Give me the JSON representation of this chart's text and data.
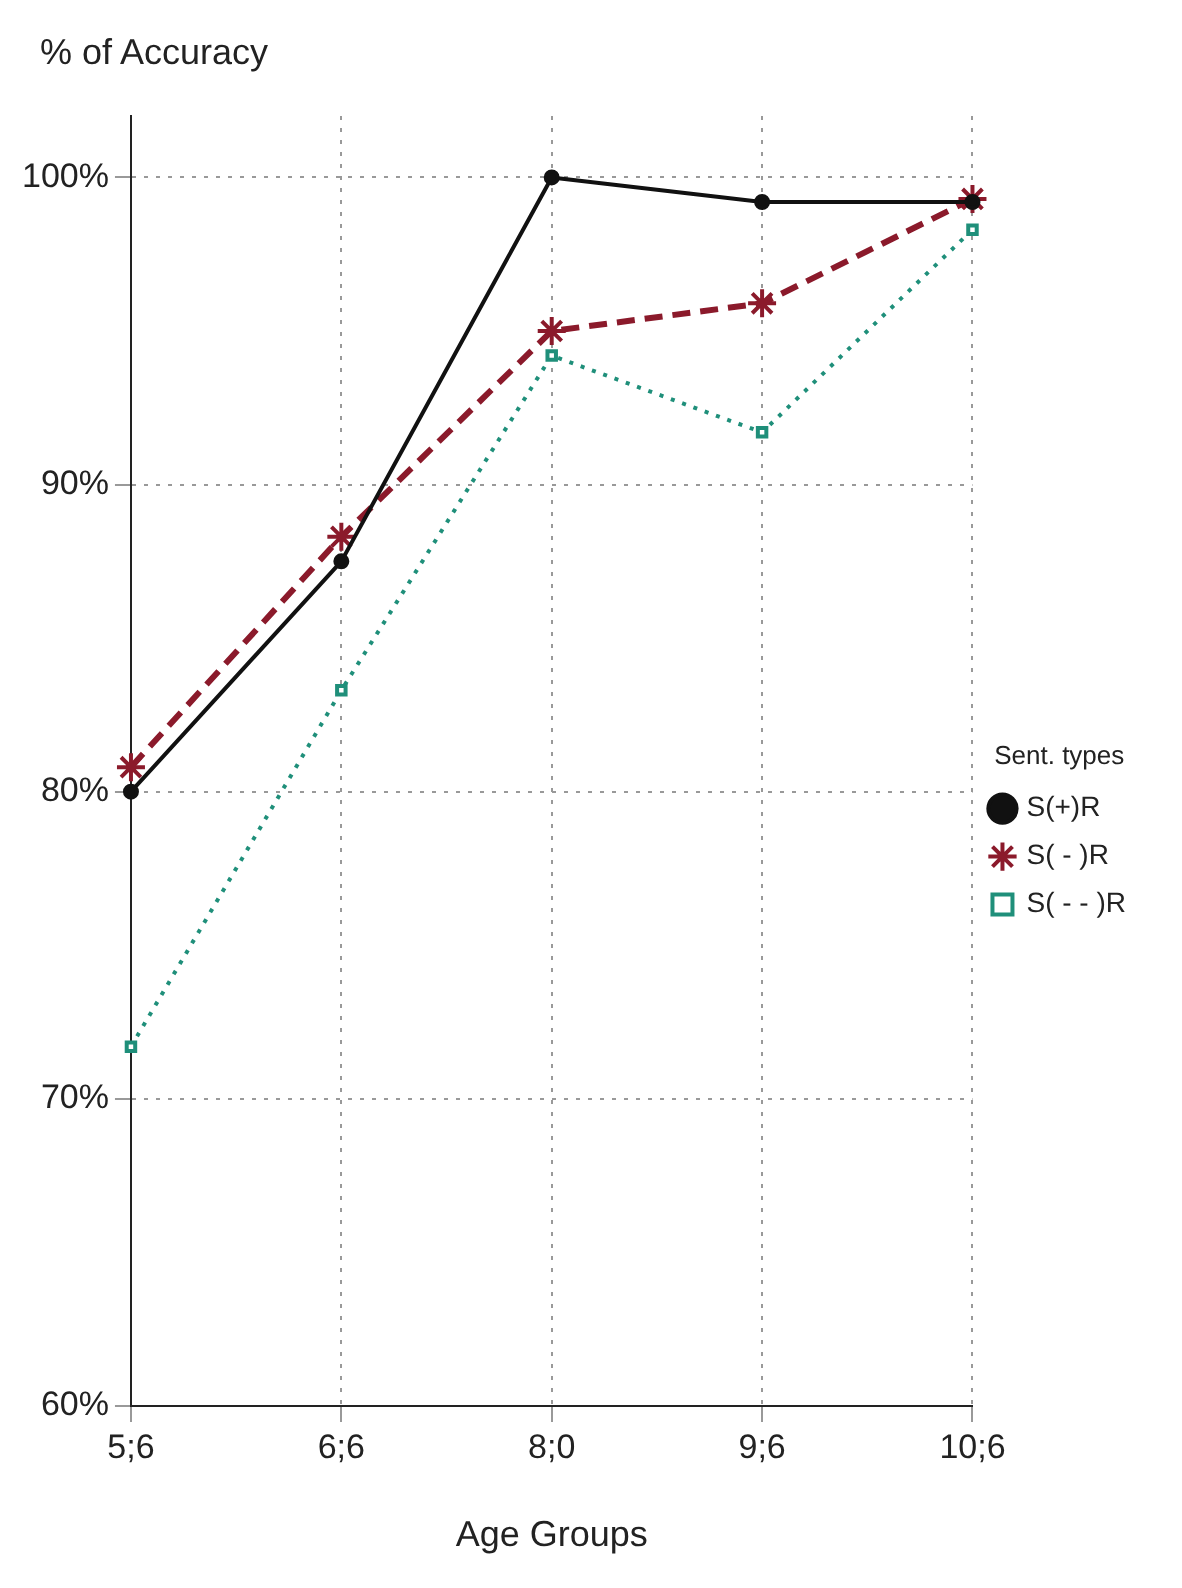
{
  "chart_data": {
    "type": "line",
    "ylabel": "% of Accuracy",
    "xlabel": "Age Groups",
    "legend_title": "Sent. types",
    "categories": [
      "5;6",
      "6;6",
      "8;0",
      "9;6",
      "10;6"
    ],
    "series": [
      {
        "name": "S(+)R",
        "color": "#111111",
        "values": [
          80,
          87.5,
          100,
          99.2,
          99.2
        ],
        "marker": "circle",
        "line_style": "solid"
      },
      {
        "name": "S( - )R",
        "color": "#8b1a2b",
        "values": [
          80.8,
          88.3,
          95,
          95.9,
          99.3
        ],
        "marker": "cross",
        "line_style": "dashed"
      },
      {
        "name": "S( - - )R",
        "color": "#1f8f7a",
        "values": [
          71.7,
          83.3,
          94.2,
          91.7,
          98.3
        ],
        "marker": "square",
        "line_style": "dotted"
      }
    ],
    "ylim": [
      60,
      102
    ],
    "yticks": [
      {
        "value": 60,
        "label": "60%"
      },
      {
        "value": 70,
        "label": "70%"
      },
      {
        "value": 80,
        "label": "80%"
      },
      {
        "value": 90,
        "label": "90%"
      },
      {
        "value": 100,
        "label": "100%"
      }
    ],
    "grid": true,
    "legend": "right"
  }
}
